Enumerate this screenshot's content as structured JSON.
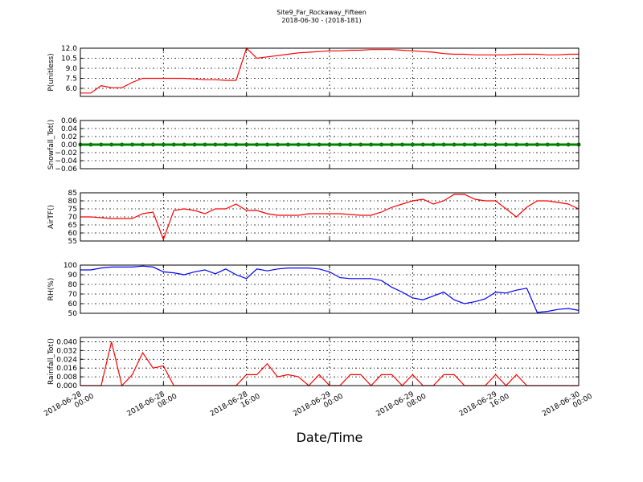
{
  "title": "Site9_Far_Rockaway_Fifteen",
  "subtitle": "2018-06-30 - (2018-181)",
  "xlabel": "Date/Time",
  "x": [
    "2018-06-28 00:00",
    "2018-06-28 01:00",
    "2018-06-28 02:00",
    "2018-06-28 03:00",
    "2018-06-28 04:00",
    "2018-06-28 05:00",
    "2018-06-28 06:00",
    "2018-06-28 07:00",
    "2018-06-28 08:00",
    "2018-06-28 09:00",
    "2018-06-28 10:00",
    "2018-06-28 11:00",
    "2018-06-28 12:00",
    "2018-06-28 13:00",
    "2018-06-28 14:00",
    "2018-06-28 15:00",
    "2018-06-28 16:00",
    "2018-06-28 17:00",
    "2018-06-28 18:00",
    "2018-06-28 19:00",
    "2018-06-28 20:00",
    "2018-06-28 21:00",
    "2018-06-28 22:00",
    "2018-06-28 23:00",
    "2018-06-29 00:00",
    "2018-06-29 01:00",
    "2018-06-29 02:00",
    "2018-06-29 03:00",
    "2018-06-29 04:00",
    "2018-06-29 05:00",
    "2018-06-29 06:00",
    "2018-06-29 07:00",
    "2018-06-29 08:00",
    "2018-06-29 09:00",
    "2018-06-29 10:00",
    "2018-06-29 11:00",
    "2018-06-29 12:00",
    "2018-06-29 13:00",
    "2018-06-29 14:00",
    "2018-06-29 15:00",
    "2018-06-29 16:00",
    "2018-06-29 17:00",
    "2018-06-29 18:00",
    "2018-06-29 19:00",
    "2018-06-29 20:00",
    "2018-06-29 21:00",
    "2018-06-29 22:00",
    "2018-06-29 23:00",
    "2018-06-30 00:00"
  ],
  "xlim": [
    "2018-06-28 00:00",
    "2018-06-30 00:00"
  ],
  "xticks": [
    "2018-06-28 00:00",
    "2018-06-28 08:00",
    "2018-06-28 16:00",
    "2018-06-29 00:00",
    "2018-06-29 08:00",
    "2018-06-29 16:00",
    "2018-06-30 00:00"
  ],
  "chart_data": [
    {
      "type": "line",
      "ylabel": "P(unitless)",
      "color": "#ff0000",
      "grid": true,
      "ylim": [
        4.8,
        12.0
      ],
      "yticks": [
        {
          "value": 6,
          "label": "6.0"
        },
        7.5,
        {
          "value": 9,
          "label": "9.0"
        },
        10.5,
        {
          "value": 12,
          "label": "12.0"
        }
      ],
      "values": [
        5.3,
        5.3,
        6.4,
        6.1,
        6.1,
        6.9,
        7.5,
        7.5,
        7.5,
        7.5,
        7.5,
        7.4,
        7.3,
        7.3,
        7.2,
        7.2,
        12.0,
        10.5,
        10.7,
        10.9,
        11.1,
        11.3,
        11.4,
        11.5,
        11.6,
        11.6,
        11.7,
        11.7,
        11.8,
        11.8,
        11.8,
        11.7,
        11.6,
        11.5,
        11.4,
        11.2,
        11.1,
        11.1,
        11.0,
        11.0,
        11.0,
        11.0,
        11.1,
        11.1,
        11.1,
        11.0,
        11.0,
        11.1,
        11.1
      ]
    },
    {
      "type": "line",
      "ylabel": "Snowfall_Tot()",
      "color": "#008000",
      "grid": true,
      "markers": true,
      "ylim": [
        -0.06,
        0.06
      ],
      "yticks": [
        {
          "value": -0.06,
          "label": "−0.06"
        },
        {
          "value": -0.04,
          "label": "−0.04"
        },
        {
          "value": -0.02,
          "label": "−0.02"
        },
        {
          "value": 0,
          "label": "0.00"
        },
        {
          "value": 0.02,
          "label": "0.02"
        },
        {
          "value": 0.04,
          "label": "0.04"
        },
        {
          "value": 0.06,
          "label": "0.06"
        }
      ],
      "values": [
        0,
        0,
        0,
        0,
        0,
        0,
        0,
        0,
        0,
        0,
        0,
        0,
        0,
        0,
        0,
        0,
        0,
        0,
        0,
        0,
        0,
        0,
        0,
        0,
        0,
        0,
        0,
        0,
        0,
        0,
        0,
        0,
        0,
        0,
        0,
        0,
        0,
        0,
        0,
        0,
        0,
        0,
        0,
        0,
        0,
        0,
        0,
        0,
        0
      ]
    },
    {
      "type": "line",
      "ylabel": "AirTF()",
      "color": "#ff0000",
      "grid": true,
      "ylim": [
        55,
        85
      ],
      "yticks": [
        55,
        60,
        65,
        70,
        75,
        80,
        85
      ],
      "values": [
        70,
        70,
        69.5,
        69,
        69,
        69,
        72,
        73,
        56,
        74,
        75,
        74,
        72,
        75,
        75,
        78,
        74,
        74,
        72,
        71,
        71,
        71,
        72,
        72,
        72,
        72,
        71.5,
        71,
        71,
        73,
        76,
        78,
        80,
        81,
        78,
        80,
        84,
        84,
        81,
        80,
        80,
        75,
        70,
        76,
        80,
        80,
        79,
        78,
        75
      ]
    },
    {
      "type": "line",
      "ylabel": "RH(%)",
      "color": "#0000ff",
      "grid": true,
      "ylim": [
        50,
        100
      ],
      "yticks": [
        50,
        60,
        70,
        80,
        90,
        100
      ],
      "values": [
        95,
        95,
        97,
        98,
        98,
        98,
        99,
        98,
        93,
        92,
        90,
        93,
        95,
        91,
        96,
        90,
        86,
        96,
        94,
        96,
        97,
        97,
        97,
        96,
        93,
        87,
        86,
        86,
        86,
        84,
        77,
        72,
        66,
        64,
        68,
        72,
        64,
        60,
        62,
        65,
        72,
        71,
        74,
        76,
        51,
        52,
        54,
        55,
        53
      ]
    },
    {
      "type": "line",
      "ylabel": "Rainfall_Tot()",
      "color": "#ff0000",
      "grid": true,
      "ylim": [
        0,
        0.044
      ],
      "yticks": [
        {
          "value": 0,
          "label": "0.000"
        },
        {
          "value": 0.008,
          "label": "0.008"
        },
        {
          "value": 0.016,
          "label": "0.016"
        },
        {
          "value": 0.024,
          "label": "0.024"
        },
        {
          "value": 0.032,
          "label": "0.032"
        },
        {
          "value": 0.04,
          "label": "0.040"
        }
      ],
      "values": [
        0,
        0,
        0,
        0.04,
        0,
        0.01,
        0.03,
        0.016,
        0.018,
        0,
        0,
        0,
        0,
        0,
        0,
        0,
        0.01,
        0.01,
        0.02,
        0.008,
        0.01,
        0.008,
        0,
        0.01,
        0,
        0,
        0.01,
        0.01,
        0,
        0.01,
        0.01,
        0,
        0.01,
        0,
        0,
        0.01,
        0.01,
        0,
        0,
        0,
        0.01,
        0,
        0.01,
        0,
        0,
        0,
        0,
        0,
        0
      ]
    }
  ]
}
